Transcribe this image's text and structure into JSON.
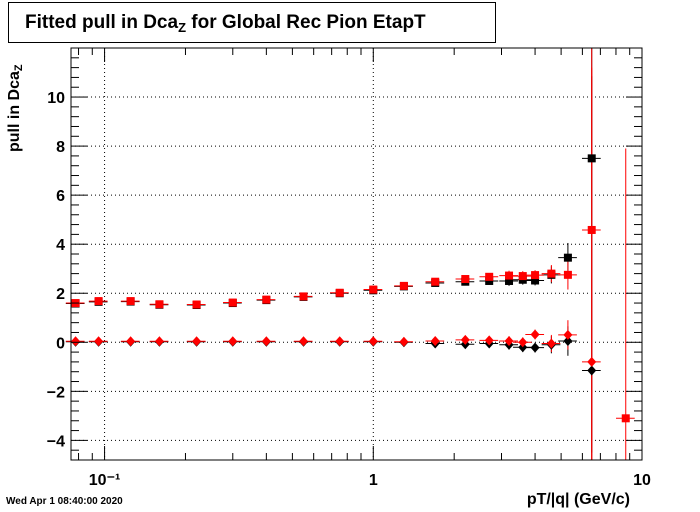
{
  "header": {
    "title_main": "Fitted pull in Dca",
    "title_sub": "Z",
    "title_rest": " for Global Rec Pion EtapT"
  },
  "footer": {
    "timestamp": "Wed Apr  1 08:40:00 2020"
  },
  "chart_data": {
    "type": "scatter",
    "title": "Fitted pull in DcaZ for Global Rec Pion EtapT",
    "xlabel": "pT/|q| (GeV/c)",
    "ylabel": "pull in DcaZ",
    "xscale": "log",
    "xlim": [
      0.075,
      10
    ],
    "ylim": [
      -4.8,
      12
    ],
    "grid": true,
    "legend": "none",
    "x_tick_labels": [
      "10⁻¹",
      "1",
      "10"
    ],
    "y_tick_labels": [
      "−4",
      "−2",
      "0",
      "2",
      "4",
      "6",
      "8",
      "10"
    ],
    "colors": {
      "series_black": "#000000",
      "series_red": "#ff0000"
    },
    "series": [
      {
        "color": "#000000",
        "marker": "square",
        "points": [
          [
            0.078,
            1.58
          ],
          [
            0.095,
            1.65
          ],
          [
            0.125,
            1.66
          ],
          [
            0.16,
            1.53
          ],
          [
            0.22,
            1.52
          ],
          [
            0.3,
            1.6
          ],
          [
            0.4,
            1.72
          ],
          [
            0.55,
            1.85
          ],
          [
            0.75,
            2.0
          ],
          [
            1.0,
            2.12
          ],
          [
            1.3,
            2.28
          ],
          [
            1.7,
            2.42
          ],
          [
            2.2,
            2.47
          ],
          [
            2.7,
            2.5
          ],
          [
            3.2,
            2.5
          ],
          [
            3.6,
            2.55
          ],
          [
            4.0,
            2.52
          ],
          [
            4.6,
            2.75
          ],
          [
            5.3,
            3.45
          ],
          [
            6.5,
            7.5
          ]
        ]
      },
      {
        "color": "#000000",
        "marker": "diamond",
        "points": [
          [
            0.078,
            0.02
          ],
          [
            0.095,
            0.02
          ],
          [
            0.125,
            0.02
          ],
          [
            0.16,
            0.02
          ],
          [
            0.22,
            0.02
          ],
          [
            0.3,
            0.02
          ],
          [
            0.4,
            0.02
          ],
          [
            0.55,
            0.02
          ],
          [
            0.75,
            0.02
          ],
          [
            1.0,
            0.02
          ],
          [
            1.3,
            0.0
          ],
          [
            1.7,
            -0.05
          ],
          [
            2.2,
            -0.08
          ],
          [
            2.7,
            -0.05
          ],
          [
            3.2,
            -0.1
          ],
          [
            3.6,
            -0.2
          ],
          [
            4.0,
            -0.22
          ],
          [
            4.6,
            -0.1
          ],
          [
            5.3,
            0.05
          ],
          [
            6.5,
            -1.15
          ]
        ]
      },
      {
        "color": "#ff0000",
        "marker": "square",
        "points": [
          [
            0.078,
            1.6
          ],
          [
            0.095,
            1.68
          ],
          [
            0.125,
            1.68
          ],
          [
            0.16,
            1.55
          ],
          [
            0.22,
            1.54
          ],
          [
            0.3,
            1.62
          ],
          [
            0.4,
            1.74
          ],
          [
            0.55,
            1.87
          ],
          [
            0.75,
            2.02
          ],
          [
            1.0,
            2.15
          ],
          [
            1.3,
            2.3
          ],
          [
            1.7,
            2.47
          ],
          [
            2.2,
            2.58
          ],
          [
            2.7,
            2.67
          ],
          [
            3.2,
            2.72
          ],
          [
            3.6,
            2.7
          ],
          [
            4.0,
            2.74
          ],
          [
            4.6,
            2.8
          ],
          [
            5.3,
            2.75
          ],
          [
            6.5,
            4.58
          ],
          [
            8.7,
            -3.1
          ]
        ]
      },
      {
        "color": "#ff0000",
        "marker": "diamond",
        "points": [
          [
            0.078,
            0.04
          ],
          [
            0.095,
            0.04
          ],
          [
            0.125,
            0.04
          ],
          [
            0.16,
            0.04
          ],
          [
            0.22,
            0.04
          ],
          [
            0.3,
            0.04
          ],
          [
            0.4,
            0.04
          ],
          [
            0.55,
            0.04
          ],
          [
            0.75,
            0.04
          ],
          [
            1.0,
            0.04
          ],
          [
            1.3,
            0.02
          ],
          [
            1.7,
            0.05
          ],
          [
            2.2,
            0.1
          ],
          [
            2.7,
            0.08
          ],
          [
            3.2,
            0.05
          ],
          [
            3.6,
            0.0
          ],
          [
            4.0,
            0.32
          ],
          [
            4.6,
            -0.05
          ],
          [
            5.3,
            0.3
          ],
          [
            6.5,
            -0.8
          ]
        ]
      }
    ]
  }
}
